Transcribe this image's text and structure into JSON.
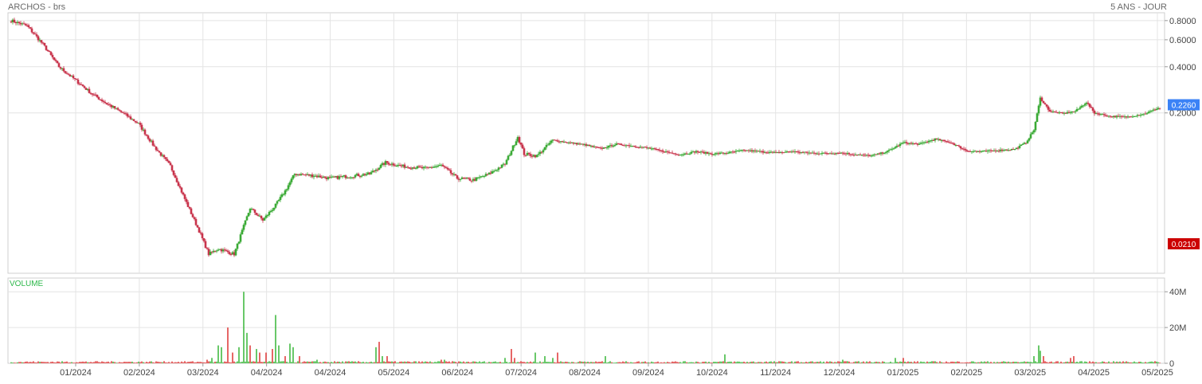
{
  "header": {
    "title": "ARCHOS - brs",
    "range": "5 ANS - JOUR"
  },
  "colors": {
    "up": "#3aaa35",
    "down": "#c8334b",
    "vol_up": "#44bb44",
    "vol_down": "#e04040",
    "grid": "#e4e4e4",
    "last_badge": "#3b82f6",
    "low_badge": "#cc0000"
  },
  "chart_data": [
    {
      "type": "candlestick",
      "title": "ARCHOS - brs",
      "yscale": "log",
      "ylim": [
        0.018,
        0.9
      ],
      "y_ticks": [
        "0.8000",
        "0.6000",
        "0.4000",
        "0.2000"
      ],
      "x_ticks": [
        "01/2024",
        "02/2024",
        "03/2024",
        "04/2024",
        "04/2024",
        "05/2024",
        "06/2024",
        "07/2024",
        "08/2024",
        "09/2024",
        "10/2024",
        "11/2024",
        "12/2024",
        "01/2025",
        "02/2025",
        "03/2025",
        "04/2025",
        "05/2025"
      ],
      "last_value": "0.2260",
      "low_value": "0.0210",
      "close_path": [
        {
          "i": 0,
          "v": 0.8
        },
        {
          "i": 10,
          "v": 0.74
        },
        {
          "i": 20,
          "v": 0.56
        },
        {
          "i": 30,
          "v": 0.4
        },
        {
          "i": 40,
          "v": 0.33
        },
        {
          "i": 50,
          "v": 0.27
        },
        {
          "i": 60,
          "v": 0.23
        },
        {
          "i": 70,
          "v": 0.2
        },
        {
          "i": 80,
          "v": 0.17
        },
        {
          "i": 90,
          "v": 0.12
        },
        {
          "i": 100,
          "v": 0.09
        },
        {
          "i": 110,
          "v": 0.052
        },
        {
          "i": 118,
          "v": 0.034
        },
        {
          "i": 124,
          "v": 0.024
        },
        {
          "i": 130,
          "v": 0.026
        },
        {
          "i": 140,
          "v": 0.024
        },
        {
          "i": 150,
          "v": 0.048
        },
        {
          "i": 158,
          "v": 0.04
        },
        {
          "i": 166,
          "v": 0.05
        },
        {
          "i": 172,
          "v": 0.062
        },
        {
          "i": 178,
          "v": 0.08
        },
        {
          "i": 190,
          "v": 0.078
        },
        {
          "i": 200,
          "v": 0.075
        },
        {
          "i": 215,
          "v": 0.078
        },
        {
          "i": 225,
          "v": 0.08
        },
        {
          "i": 235,
          "v": 0.095
        },
        {
          "i": 245,
          "v": 0.09
        },
        {
          "i": 260,
          "v": 0.087
        },
        {
          "i": 270,
          "v": 0.091
        },
        {
          "i": 280,
          "v": 0.075
        },
        {
          "i": 290,
          "v": 0.073
        },
        {
          "i": 300,
          "v": 0.08
        },
        {
          "i": 310,
          "v": 0.093
        },
        {
          "i": 318,
          "v": 0.14
        },
        {
          "i": 322,
          "v": 0.108
        },
        {
          "i": 330,
          "v": 0.105
        },
        {
          "i": 340,
          "v": 0.133
        },
        {
          "i": 350,
          "v": 0.128
        },
        {
          "i": 360,
          "v": 0.124
        },
        {
          "i": 370,
          "v": 0.117
        },
        {
          "i": 380,
          "v": 0.125
        },
        {
          "i": 390,
          "v": 0.122
        },
        {
          "i": 400,
          "v": 0.118
        },
        {
          "i": 410,
          "v": 0.112
        },
        {
          "i": 420,
          "v": 0.107
        },
        {
          "i": 430,
          "v": 0.112
        },
        {
          "i": 440,
          "v": 0.108
        },
        {
          "i": 450,
          "v": 0.11
        },
        {
          "i": 460,
          "v": 0.114
        },
        {
          "i": 470,
          "v": 0.112
        },
        {
          "i": 480,
          "v": 0.11
        },
        {
          "i": 490,
          "v": 0.112
        },
        {
          "i": 500,
          "v": 0.11
        },
        {
          "i": 510,
          "v": 0.109
        },
        {
          "i": 520,
          "v": 0.11
        },
        {
          "i": 530,
          "v": 0.107
        },
        {
          "i": 540,
          "v": 0.105
        },
        {
          "i": 550,
          "v": 0.112
        },
        {
          "i": 560,
          "v": 0.128
        },
        {
          "i": 570,
          "v": 0.125
        },
        {
          "i": 580,
          "v": 0.135
        },
        {
          "i": 590,
          "v": 0.128
        },
        {
          "i": 600,
          "v": 0.113
        },
        {
          "i": 610,
          "v": 0.112
        },
        {
          "i": 620,
          "v": 0.114
        },
        {
          "i": 630,
          "v": 0.116
        },
        {
          "i": 637,
          "v": 0.128
        },
        {
          "i": 642,
          "v": 0.155
        },
        {
          "i": 646,
          "v": 0.25
        },
        {
          "i": 652,
          "v": 0.205
        },
        {
          "i": 660,
          "v": 0.198
        },
        {
          "i": 668,
          "v": 0.205
        },
        {
          "i": 675,
          "v": 0.235
        },
        {
          "i": 680,
          "v": 0.2
        },
        {
          "i": 690,
          "v": 0.19
        },
        {
          "i": 700,
          "v": 0.188
        },
        {
          "i": 712,
          "v": 0.198
        },
        {
          "i": 720,
          "v": 0.215
        }
      ],
      "volume": {
        "ylim": [
          0,
          45
        ],
        "y_ticks": [
          "40M",
          "20M",
          "0"
        ],
        "label": "VOLUME",
        "spikes": [
          {
            "i": 123,
            "v": 2,
            "up": false
          },
          {
            "i": 126,
            "v": 3,
            "up": true
          },
          {
            "i": 130,
            "v": 10,
            "up": true
          },
          {
            "i": 132,
            "v": 9,
            "up": true
          },
          {
            "i": 136,
            "v": 20,
            "up": false
          },
          {
            "i": 139,
            "v": 6,
            "up": false
          },
          {
            "i": 143,
            "v": 9,
            "up": true
          },
          {
            "i": 146,
            "v": 40,
            "up": true
          },
          {
            "i": 148,
            "v": 17,
            "up": true
          },
          {
            "i": 150,
            "v": 10,
            "up": false
          },
          {
            "i": 154,
            "v": 8,
            "up": true
          },
          {
            "i": 156,
            "v": 6,
            "up": false
          },
          {
            "i": 160,
            "v": 6,
            "up": false
          },
          {
            "i": 164,
            "v": 8,
            "up": false
          },
          {
            "i": 166,
            "v": 27,
            "up": true
          },
          {
            "i": 168,
            "v": 10,
            "up": true
          },
          {
            "i": 172,
            "v": 4,
            "up": false
          },
          {
            "i": 175,
            "v": 11,
            "up": true
          },
          {
            "i": 177,
            "v": 9,
            "up": true
          },
          {
            "i": 181,
            "v": 4,
            "up": false
          },
          {
            "i": 192,
            "v": 2,
            "up": true
          },
          {
            "i": 229,
            "v": 9,
            "up": true
          },
          {
            "i": 231,
            "v": 12,
            "up": false
          },
          {
            "i": 233,
            "v": 4,
            "up": true
          },
          {
            "i": 236,
            "v": 4,
            "up": false
          },
          {
            "i": 270,
            "v": 2,
            "up": false
          },
          {
            "i": 272,
            "v": 2,
            "up": true
          },
          {
            "i": 310,
            "v": 3,
            "up": true
          },
          {
            "i": 314,
            "v": 8,
            "up": false
          },
          {
            "i": 316,
            "v": 3,
            "up": false
          },
          {
            "i": 329,
            "v": 6,
            "up": true
          },
          {
            "i": 335,
            "v": 4,
            "up": true
          },
          {
            "i": 340,
            "v": 3,
            "up": true
          },
          {
            "i": 343,
            "v": 6,
            "up": false
          },
          {
            "i": 373,
            "v": 4,
            "up": true
          },
          {
            "i": 448,
            "v": 5,
            "up": true
          },
          {
            "i": 522,
            "v": 2,
            "up": true
          },
          {
            "i": 555,
            "v": 3,
            "up": true
          },
          {
            "i": 560,
            "v": 3,
            "up": false
          },
          {
            "i": 642,
            "v": 4,
            "up": true
          },
          {
            "i": 645,
            "v": 10,
            "up": true
          },
          {
            "i": 646,
            "v": 7,
            "up": true
          },
          {
            "i": 648,
            "v": 4,
            "up": false
          },
          {
            "i": 665,
            "v": 3,
            "up": false
          },
          {
            "i": 667,
            "v": 4,
            "up": false
          }
        ]
      }
    }
  ]
}
